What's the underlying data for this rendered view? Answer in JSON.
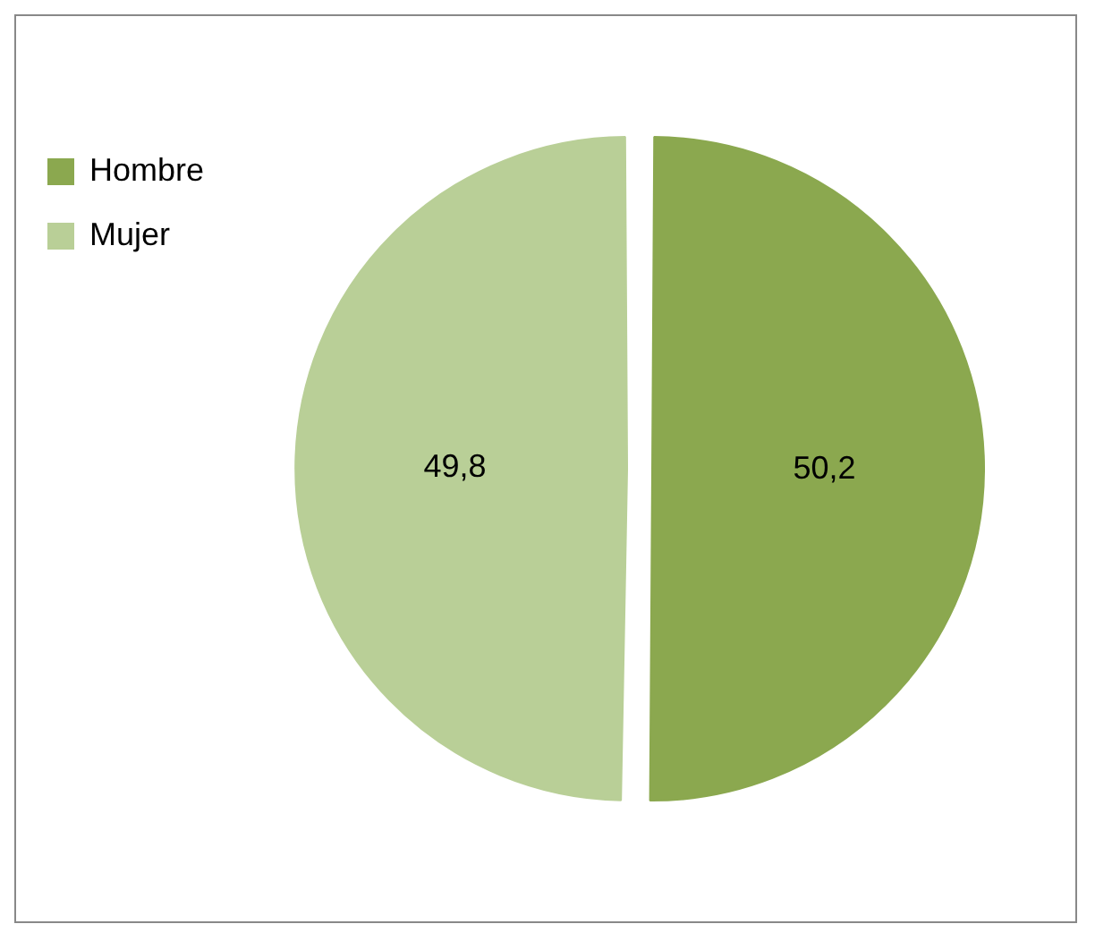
{
  "chart_data": {
    "type": "pie",
    "categories": [
      "Hombre",
      "Mujer"
    ],
    "values": [
      50.2,
      49.8
    ],
    "colors": [
      "#8ba84f",
      "#b9cf97"
    ],
    "value_labels": [
      "50,2",
      "49,8"
    ],
    "legend": "top left"
  }
}
